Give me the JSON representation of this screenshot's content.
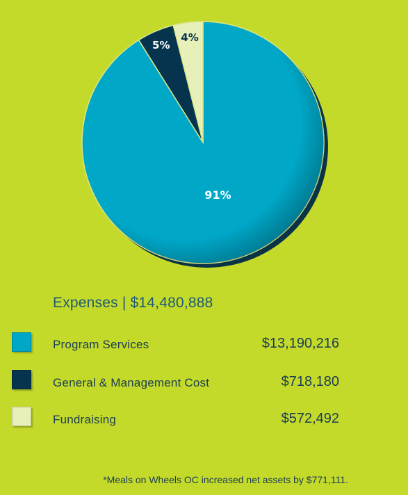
{
  "colors": {
    "background": "#c4da2b",
    "text_dark": "#1c3d52",
    "heading": "#1f5a73",
    "program_services": "#00a7c7",
    "general_management": "#06344e",
    "fundraising": "#e7f0b9",
    "label_light": "#ffffff",
    "label_dark": "#06344e"
  },
  "chart_data": {
    "type": "pie",
    "title": "Expenses | $14,480,888",
    "total": 14480888,
    "slices": [
      {
        "name": "Program Services",
        "value": 13190216,
        "percent_label": "91%",
        "color": "#00a7c7",
        "label_color": "#ffffff"
      },
      {
        "name": "General & Management Cost",
        "value": 718180,
        "percent_label": "5%",
        "color": "#06344e",
        "label_color": "#ffffff"
      },
      {
        "name": "Fundraising",
        "value": 572492,
        "percent_label": "4%",
        "color": "#e7f0b9",
        "label_color": "#06344e"
      }
    ],
    "start_angle_deg": 0,
    "direction": "clockwise-from-top",
    "legend_position": "below"
  },
  "legend": {
    "heading": "Expenses | $14,480,888",
    "items": [
      {
        "label": "Program Services",
        "amount": "$13,190,216",
        "color": "#00a7c7"
      },
      {
        "label": "General & Management Cost",
        "amount": "$718,180",
        "color": "#06344e"
      },
      {
        "label": "Fundraising",
        "amount": "$572,492",
        "color": "#e7f0b9"
      }
    ]
  },
  "footnote": "*Meals on Wheels OC increased net assets by $771,111."
}
